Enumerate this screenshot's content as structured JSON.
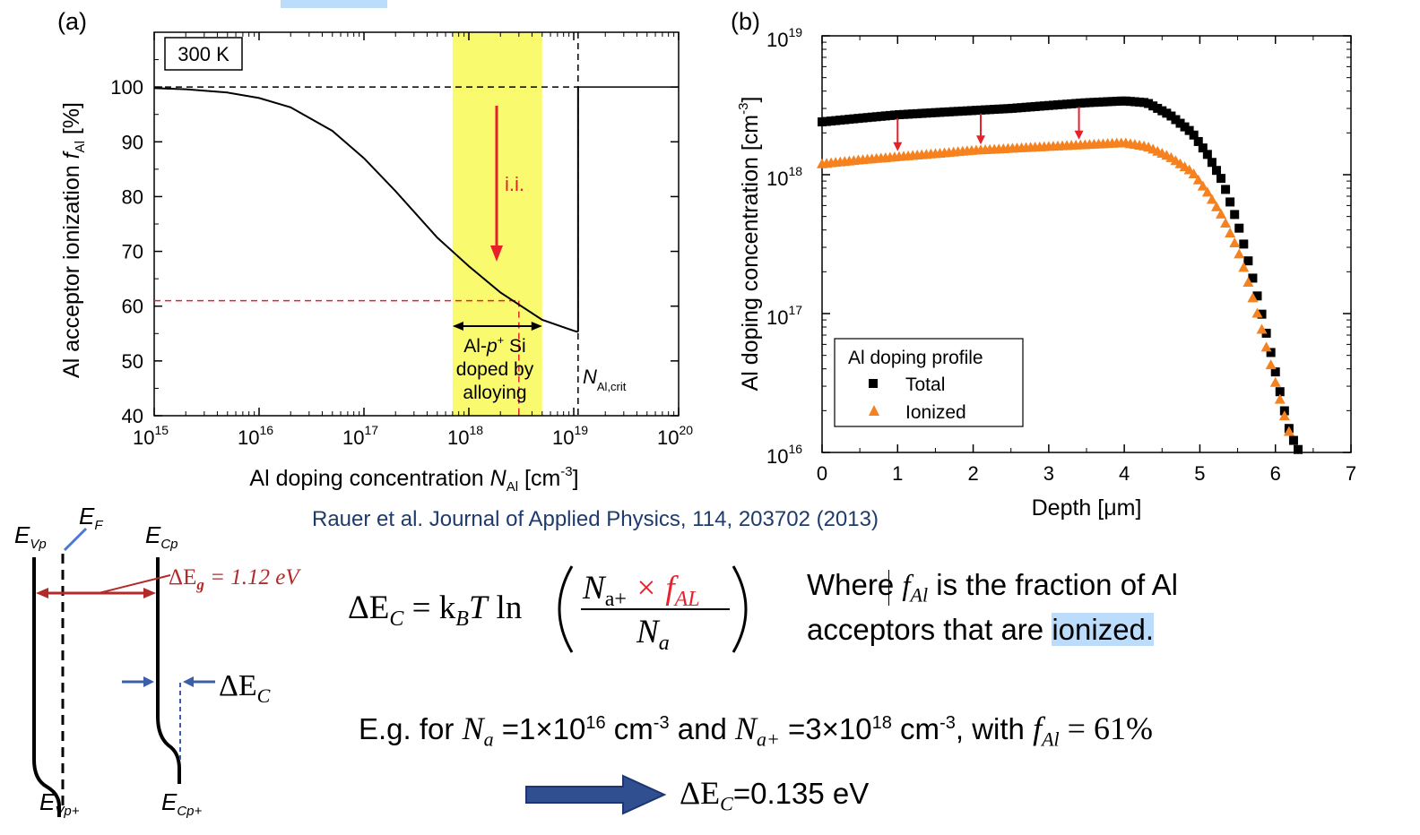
{
  "chart_data": [
    {
      "type": "line",
      "panel_label": "(a)",
      "inset_label": "300 K",
      "xlabel": "Al doping concentration N_Al [cm^-3]",
      "ylabel": "Al acceptor ionization f_Al [%]",
      "x_scale": "log",
      "xlim": [
        1000000000000000.0,
        1e+20
      ],
      "ylim": [
        40,
        110
      ],
      "x_ticks": [
        1000000000000000.0,
        1e+16,
        1e+17,
        1e+18,
        1e+19,
        1e+20
      ],
      "y_ticks": [
        40,
        50,
        60,
        70,
        80,
        90,
        100
      ],
      "series": [
        {
          "x": [
            1000000000000000.0,
            2000000000000000.0,
            5000000000000000.0,
            1e+16,
            2e+16,
            5e+16,
            1e+17,
            2e+17,
            5e+17,
            1e+18,
            2e+18,
            5e+18,
            1e+19,
            1.1e+19
          ],
          "y": [
            99.8,
            99.6,
            99.0,
            98.0,
            96.3,
            92.0,
            87.0,
            81.0,
            72.5,
            67.3,
            62.5,
            57.5,
            55.5,
            55.3
          ]
        }
      ],
      "reference_lines": [
        {
          "type": "horizontal",
          "y": 100,
          "style": "dashed",
          "color": "#000000"
        },
        {
          "type": "vertical",
          "x": 1.1e+19,
          "style": "dashed",
          "color": "#000000"
        },
        {
          "type": "horizontal",
          "y": 61,
          "x_end": 3e+18,
          "style": "dashed",
          "color": "#e8202a"
        },
        {
          "type": "vertical",
          "x": 3e+18,
          "y_end": 61,
          "style": "dashed",
          "color": "#e8202a"
        }
      ],
      "band": {
        "x_start": 7e+17,
        "x_end": 5e+18,
        "color": "#fafa6e"
      },
      "band_label": [
        "Al-p+ Si",
        "doped by",
        "alloying"
      ],
      "arrow_label": "i.i.",
      "crit_label": "N_Al,crit",
      "tick_labels_x": [
        "10",
        "10",
        "10",
        "10",
        "10",
        "10"
      ],
      "tick_exps_x": [
        "15",
        "16",
        "17",
        "18",
        "19",
        "20"
      ],
      "tick_labels_y": [
        "40",
        "50",
        "60",
        "70",
        "80",
        "90",
        "100"
      ]
    },
    {
      "type": "scatter",
      "panel_label": "(b)",
      "xlabel": "Depth [μm]",
      "ylabel": "Al doping concentration [cm^-3]",
      "y_scale": "log",
      "xlim": [
        0,
        7
      ],
      "ylim": [
        1e+16,
        1e+19
      ],
      "x_ticks": [
        0,
        1,
        2,
        3,
        4,
        5,
        6,
        7
      ],
      "y_ticks": [
        1e+16,
        1e+17,
        1e+18,
        1e+19
      ],
      "legend_title": "Al doping profile",
      "legend_placement": "bottom-left",
      "series": [
        {
          "name": "Total",
          "marker": "square",
          "color": "#000000",
          "x": [
            0,
            0.5,
            1.0,
            1.5,
            2.0,
            2.5,
            3.0,
            3.5,
            4.0,
            4.3,
            4.6,
            4.9,
            5.1,
            5.3,
            5.5,
            5.6,
            5.7,
            5.8,
            5.9,
            6.0,
            6.1,
            6.2,
            6.3
          ],
          "y": [
            2.4e+18,
            2.55e+18,
            2.7e+18,
            2.8e+18,
            2.9e+18,
            3e+18,
            3.15e+18,
            3.3e+18,
            3.4e+18,
            3.3e+18,
            2.7e+18,
            2e+18,
            1.4e+18,
            9e+17,
            4.5e+17,
            2.9e+17,
            1.8e+17,
            1.1e+17,
            6.5e+16,
            3.8e+16,
            2.2e+16,
            1.35e+16,
            1.05e+16
          ]
        },
        {
          "name": "Ionized",
          "marker": "triangle",
          "color": "#f5821f",
          "x": [
            0,
            0.5,
            1.0,
            1.5,
            2.0,
            2.5,
            3.0,
            3.5,
            4.0,
            4.3,
            4.6,
            4.9,
            5.1,
            5.3,
            5.5,
            5.6,
            5.7,
            5.8,
            5.9,
            6.0,
            6.1,
            6.2
          ],
          "y": [
            1.2e+18,
            1.28e+18,
            1.35e+18,
            1.42e+18,
            1.5e+18,
            1.55e+18,
            1.6e+18,
            1.65e+18,
            1.7e+18,
            1.6e+18,
            1.35e+18,
            1.05e+18,
            7.5e+17,
            5e+17,
            2.9e+17,
            2e+17,
            1.3e+17,
            8.5e+16,
            5.2e+16,
            3.2e+16,
            2e+16,
            1.3e+16
          ]
        }
      ],
      "arrows_at_x": [
        1.0,
        2.1,
        3.4
      ],
      "tick_labels_x": [
        "0",
        "1",
        "2",
        "3",
        "4",
        "5",
        "6",
        "7"
      ],
      "tick_labels_y": [
        "10",
        "10",
        "10",
        "10"
      ],
      "tick_exps_y": [
        "16",
        "17",
        "18",
        "19"
      ]
    }
  ],
  "citation": "Rauer et al. Journal of Applied Physics, 114, 203702 (2013)",
  "band_diagram": {
    "labels": {
      "evp": "E",
      "evp_sub": "Vp",
      "ef": "E",
      "ef_sub": "F",
      "ecp": "E",
      "ecp_sub": "Cp",
      "evp_plus": "E",
      "evp_plus_sub": "Vp+",
      "ecp_plus": "E",
      "ecp_plus_sub": "Cp+",
      "eg": "ΔE",
      "eg_sub": "g",
      "eg_value": " = 1.12 eV",
      "dec": "ΔE",
      "dec_sub": "C"
    }
  },
  "equation": {
    "lhs": "ΔE",
    "lhs_sub": "C",
    "eq": " = k",
    "kb_sub": "B",
    "t": "T",
    "ln": "ln",
    "num_n": "N",
    "num_sub": "a+",
    "times_f": " × f",
    "f_sub": "AL",
    "den_n": "N",
    "den_sub": "a"
  },
  "description": {
    "where": "Where ",
    "f": "f",
    "f_sub": "Al",
    "rest1": " is the fraction of Al",
    "rest2": "acceptors that are ",
    "highlight": "ionized."
  },
  "example": {
    "prefix": "E.g. for ",
    "na": "N",
    "na_sub": "a",
    "eq1": " =1×10",
    "exp1": "16",
    "unit1": " cm",
    "unit_exp1": "-3",
    "and": " and ",
    "nap": "N",
    "nap_sub": "a+",
    "eq2": " =3×10",
    "exp2": "18",
    "unit2": " cm",
    "unit_exp2": "-3",
    "with": ", with ",
    "f": "f",
    "f_sub": "Al",
    "fval": " = 61%"
  },
  "result": {
    "de": "ΔE",
    "de_sub": "C",
    "value": "=0.135 eV"
  },
  "colors": {
    "band_yellow": "#fafa6e",
    "red": "#e8202a",
    "dark_red": "#b22a2a",
    "orange": "#f5821f",
    "blue_arrow": "#3a5fa8",
    "citation_blue": "#1f3b6b",
    "selection": "#bcdcfb"
  }
}
